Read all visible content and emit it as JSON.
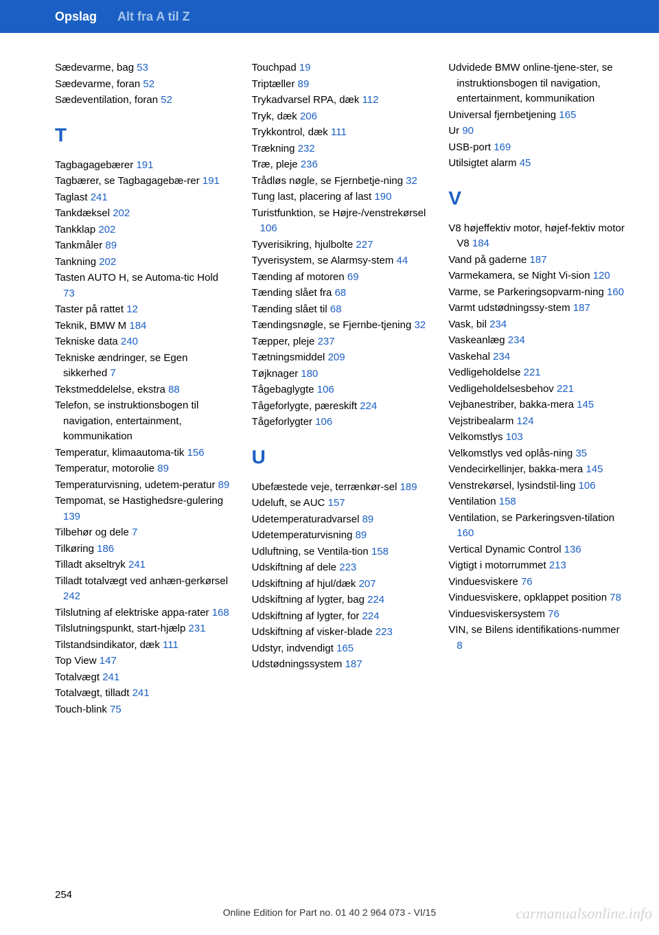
{
  "header": {
    "title": "Opslag",
    "subtitle": "Alt fra A til Z"
  },
  "colors": {
    "header_bg": "#1b5fc4",
    "header_subtitle": "#a8c5ec",
    "link": "#1b5fc4",
    "text": "#000000",
    "watermark": "rgba(128,128,128,0.35)"
  },
  "columns": [
    {
      "sections": [
        {
          "letter": null,
          "entries": [
            {
              "text": "Sædevarme, bag",
              "ref": "53"
            },
            {
              "text": "Sædevarme, foran",
              "ref": "52"
            },
            {
              "text": "Sædeventilation, foran",
              "ref": "52"
            }
          ]
        },
        {
          "letter": "T",
          "entries": [
            {
              "text": "Tagbagagebærer",
              "ref": "191"
            },
            {
              "text": "Tagbærer, se Tagbagagebæ‐rer",
              "ref": "191"
            },
            {
              "text": "Taglast",
              "ref": "241"
            },
            {
              "text": "Tankdæksel",
              "ref": "202"
            },
            {
              "text": "Tankklap",
              "ref": "202"
            },
            {
              "text": "Tankmåler",
              "ref": "89"
            },
            {
              "text": "Tankning",
              "ref": "202"
            },
            {
              "text": "Tasten AUTO H, se Automa‐tic Hold",
              "ref": "73"
            },
            {
              "text": "Taster på rattet",
              "ref": "12"
            },
            {
              "text": "Teknik, BMW M",
              "ref": "184"
            },
            {
              "text": "Tekniske data",
              "ref": "240"
            },
            {
              "text": "Tekniske ændringer, se Egen sikkerhed",
              "ref": "7"
            },
            {
              "text": "Tekstmeddelelse, ekstra",
              "ref": "88"
            },
            {
              "text": "Telefon, se instruktionsbogen til navigation, entertainment, kommunikation",
              "ref": null
            },
            {
              "text": "Temperatur, klimaautoma‐tik",
              "ref": "156"
            },
            {
              "text": "Temperatur, motorolie",
              "ref": "89"
            },
            {
              "text": "Temperaturvisning, udetem‐peratur",
              "ref": "89"
            },
            {
              "text": "Tempomat, se Hastighedsre‐gulering",
              "ref": "139"
            },
            {
              "text": "Tilbehør og dele",
              "ref": "7"
            },
            {
              "text": "Tilkøring",
              "ref": "186"
            },
            {
              "text": "Tilladt akseltryk",
              "ref": "241"
            },
            {
              "text": "Tilladt totalvægt ved anhæn‐gerkørsel",
              "ref": "242"
            },
            {
              "text": "Tilslutning af elektriske appa‐rater",
              "ref": "168"
            },
            {
              "text": "Tilslutningspunkt, start‐hjælp",
              "ref": "231"
            },
            {
              "text": "Tilstandsindikator, dæk",
              "ref": "111"
            },
            {
              "text": "Top View",
              "ref": "147"
            },
            {
              "text": "Totalvægt",
              "ref": "241"
            },
            {
              "text": "Totalvægt, tilladt",
              "ref": "241"
            },
            {
              "text": "Touch-blink",
              "ref": "75"
            }
          ]
        }
      ]
    },
    {
      "sections": [
        {
          "letter": null,
          "entries": [
            {
              "text": "Touchpad",
              "ref": "19"
            },
            {
              "text": "Triptæller",
              "ref": "89"
            },
            {
              "text": "Trykadvarsel RPA, dæk",
              "ref": "112"
            },
            {
              "text": "Tryk, dæk",
              "ref": "206"
            },
            {
              "text": "Trykkontrol, dæk",
              "ref": "111"
            },
            {
              "text": "Trækning",
              "ref": "232"
            },
            {
              "text": "Træ, pleje",
              "ref": "236"
            },
            {
              "text": "Trådløs nøgle, se Fjernbetje‐ning",
              "ref": "32"
            },
            {
              "text": "Tung last, placering af last",
              "ref": "190"
            },
            {
              "text": "Turistfunktion, se Højre-/venstrekørsel",
              "ref": "106"
            },
            {
              "text": "Tyverisikring, hjulbolte",
              "ref": "227"
            },
            {
              "text": "Tyverisystem, se Alarmsy‐stem",
              "ref": "44"
            },
            {
              "text": "Tænding af motoren",
              "ref": "69"
            },
            {
              "text": "Tænding slået fra",
              "ref": "68"
            },
            {
              "text": "Tænding slået til",
              "ref": "68"
            },
            {
              "text": "Tændingsnøgle, se Fjernbe‐tjening",
              "ref": "32"
            },
            {
              "text": "Tæpper, pleje",
              "ref": "237"
            },
            {
              "text": "Tætningsmiddel",
              "ref": "209"
            },
            {
              "text": "Tøjknager",
              "ref": "180"
            },
            {
              "text": "Tågebaglygte",
              "ref": "106"
            },
            {
              "text": "Tågeforlygte, pæreskift",
              "ref": "224"
            },
            {
              "text": "Tågeforlygter",
              "ref": "106"
            }
          ]
        },
        {
          "letter": "U",
          "entries": [
            {
              "text": "Ubefæstede veje, terrænkør‐sel",
              "ref": "189"
            },
            {
              "text": "Udeluft, se AUC",
              "ref": "157"
            },
            {
              "text": "Udetemperaturadvarsel",
              "ref": "89"
            },
            {
              "text": "Udetemperaturvisning",
              "ref": "89"
            },
            {
              "text": "Udluftning, se Ventila‐tion",
              "ref": "158"
            },
            {
              "text": "Udskiftning af dele",
              "ref": "223"
            },
            {
              "text": "Udskiftning af hjul/dæk",
              "ref": "207"
            },
            {
              "text": "Udskiftning af lygter, bag",
              "ref": "224"
            },
            {
              "text": "Udskiftning af lygter, for",
              "ref": "224"
            },
            {
              "text": "Udskiftning af visker‐blade",
              "ref": "223"
            },
            {
              "text": "Udstyr, indvendigt",
              "ref": "165"
            },
            {
              "text": "Udstødningssystem",
              "ref": "187"
            }
          ]
        }
      ]
    },
    {
      "sections": [
        {
          "letter": null,
          "entries": [
            {
              "text": "Udvidede BMW online-tjene‐ster, se instruktionsbogen til navigation, entertainment, kommunikation",
              "ref": null
            },
            {
              "text": "Universal fjernbetjening",
              "ref": "165"
            },
            {
              "text": "Ur",
              "ref": "90"
            },
            {
              "text": "USB-port",
              "ref": "169"
            },
            {
              "text": "Utilsigtet alarm",
              "ref": "45"
            }
          ]
        },
        {
          "letter": "V",
          "entries": [
            {
              "text": "V8 højeffektiv motor, højef‐fektiv motor V8",
              "ref": "184"
            },
            {
              "text": "Vand på gaderne",
              "ref": "187"
            },
            {
              "text": "Varmekamera, se Night Vi‐sion",
              "ref": "120"
            },
            {
              "text": "Varme, se Parkeringsopvarm‐ning",
              "ref": "160"
            },
            {
              "text": "Varmt udstødningssy‐stem",
              "ref": "187"
            },
            {
              "text": "Vask, bil",
              "ref": "234"
            },
            {
              "text": "Vaskeanlæg",
              "ref": "234"
            },
            {
              "text": "Vaskehal",
              "ref": "234"
            },
            {
              "text": "Vedligeholdelse",
              "ref": "221"
            },
            {
              "text": "Vedligeholdelsesbehov",
              "ref": "221"
            },
            {
              "text": "Vejbanestriber, bakka‐mera",
              "ref": "145"
            },
            {
              "text": "Vejstribealarm",
              "ref": "124"
            },
            {
              "text": "Velkomstlys",
              "ref": "103"
            },
            {
              "text": "Velkomstlys ved oplås‐ning",
              "ref": "35"
            },
            {
              "text": "Vendecirkellinjer, bakka‐mera",
              "ref": "145"
            },
            {
              "text": "Venstrekørsel, lysindstil‐ling",
              "ref": "106"
            },
            {
              "text": "Ventilation",
              "ref": "158"
            },
            {
              "text": "Ventilation, se Parkeringsven‐tilation",
              "ref": "160"
            },
            {
              "text": "Vertical Dynamic Control",
              "ref": "136"
            },
            {
              "text": "Vigtigt i motorrummet",
              "ref": "213"
            },
            {
              "text": "Vinduesviskere",
              "ref": "76"
            },
            {
              "text": "Vinduesviskere, opklappet position",
              "ref": "78"
            },
            {
              "text": "Vinduesviskersystem",
              "ref": "76"
            },
            {
              "text": "VIN, se Bilens identifikations‐nummer",
              "ref": "8"
            }
          ]
        }
      ]
    }
  ],
  "page_number": "254",
  "footer": "Online Edition for Part no. 01 40 2 964 073 - VI/15",
  "watermark": "carmanualsonline.info"
}
